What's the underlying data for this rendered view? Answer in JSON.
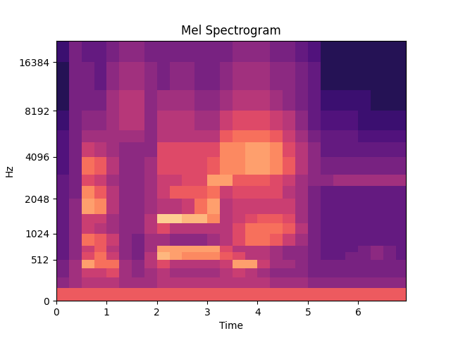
{
  "chart_data": {
    "type": "mel_spectrogram",
    "title": "Mel Spectrogram",
    "x_label": "Time",
    "y_label": "Hz",
    "color": "magma",
    "xlim": [
      0,
      6.95
    ],
    "xticks": [
      0,
      1,
      2,
      3,
      4,
      5,
      6
    ],
    "ylim": [
      0,
      22050
    ],
    "yticks": [
      0,
      512,
      1024,
      2048,
      4096,
      8192,
      16384
    ],
    "color_range": [
      0,
      1
    ],
    "times": [
      0,
      0.25,
      0.5,
      0.75,
      1.0,
      1.25,
      1.5,
      1.75,
      2.0,
      2.25,
      2.5,
      2.75,
      3.0,
      3.25,
      3.5,
      3.75,
      4.0,
      4.25,
      4.5,
      4.75,
      5.0,
      5.25,
      5.5,
      5.75,
      6.0,
      6.25,
      6.5,
      6.75,
      6.95
    ],
    "frequencies": [
      0,
      128,
      256,
      384,
      512,
      640,
      768,
      1024,
      1280,
      1536,
      2048,
      2560,
      3072,
      4096,
      5120,
      6144,
      8192,
      11000,
      16384,
      22050
    ],
    "cells": [
      [
        0.65,
        0.65,
        0.65,
        0.65,
        0.65,
        0.65,
        0.65,
        0.65,
        0.65,
        0.65,
        0.65,
        0.65,
        0.65,
        0.65,
        0.65,
        0.65,
        0.65,
        0.65,
        0.65,
        0.65,
        0.65,
        0.65,
        0.65,
        0.65,
        0.65,
        0.65,
        0.65,
        0.65
      ],
      [
        0.4,
        0.45,
        0.5,
        0.5,
        0.5,
        0.45,
        0.45,
        0.45,
        0.5,
        0.5,
        0.5,
        0.5,
        0.5,
        0.5,
        0.5,
        0.5,
        0.5,
        0.45,
        0.45,
        0.45,
        0.4,
        0.4,
        0.4,
        0.4,
        0.4,
        0.4,
        0.4,
        0.4
      ],
      [
        0.35,
        0.45,
        0.55,
        0.55,
        0.6,
        0.45,
        0.4,
        0.45,
        0.5,
        0.45,
        0.45,
        0.45,
        0.45,
        0.5,
        0.55,
        0.5,
        0.45,
        0.4,
        0.4,
        0.4,
        0.35,
        0.35,
        0.35,
        0.35,
        0.35,
        0.35,
        0.35,
        0.35
      ],
      [
        0.35,
        0.45,
        0.8,
        0.7,
        0.7,
        0.45,
        0.4,
        0.5,
        0.6,
        0.5,
        0.5,
        0.5,
        0.5,
        0.55,
        0.8,
        0.8,
        0.55,
        0.45,
        0.45,
        0.4,
        0.35,
        0.35,
        0.35,
        0.35,
        0.35,
        0.35,
        0.35,
        0.35
      ],
      [
        0.3,
        0.4,
        0.6,
        0.7,
        0.55,
        0.4,
        0.35,
        0.5,
        0.85,
        0.8,
        0.75,
        0.75,
        0.75,
        0.65,
        0.6,
        0.5,
        0.5,
        0.45,
        0.4,
        0.4,
        0.35,
        0.3,
        0.3,
        0.35,
        0.35,
        0.4,
        0.35,
        0.3
      ],
      [
        0.3,
        0.4,
        0.55,
        0.65,
        0.5,
        0.4,
        0.35,
        0.45,
        0.8,
        0.8,
        0.8,
        0.8,
        0.8,
        0.6,
        0.5,
        0.5,
        0.5,
        0.45,
        0.4,
        0.4,
        0.35,
        0.3,
        0.3,
        0.3,
        0.35,
        0.4,
        0.35,
        0.3
      ],
      [
        0.3,
        0.4,
        0.7,
        0.65,
        0.55,
        0.4,
        0.35,
        0.45,
        0.45,
        0.4,
        0.4,
        0.4,
        0.45,
        0.5,
        0.6,
        0.7,
        0.7,
        0.65,
        0.55,
        0.45,
        0.35,
        0.3,
        0.3,
        0.3,
        0.3,
        0.3,
        0.3,
        0.3
      ],
      [
        0.3,
        0.4,
        0.55,
        0.5,
        0.45,
        0.4,
        0.4,
        0.5,
        0.6,
        0.5,
        0.5,
        0.5,
        0.5,
        0.5,
        0.6,
        0.7,
        0.7,
        0.7,
        0.65,
        0.5,
        0.35,
        0.3,
        0.3,
        0.3,
        0.3,
        0.3,
        0.3,
        0.3
      ],
      [
        0.3,
        0.4,
        0.55,
        0.55,
        0.45,
        0.4,
        0.4,
        0.5,
        0.9,
        0.9,
        0.85,
        0.85,
        0.75,
        0.5,
        0.55,
        0.6,
        0.65,
        0.65,
        0.6,
        0.45,
        0.35,
        0.3,
        0.3,
        0.3,
        0.3,
        0.3,
        0.3,
        0.3
      ],
      [
        0.3,
        0.4,
        0.8,
        0.75,
        0.5,
        0.4,
        0.4,
        0.45,
        0.5,
        0.5,
        0.55,
        0.7,
        0.8,
        0.5,
        0.55,
        0.55,
        0.55,
        0.55,
        0.55,
        0.45,
        0.35,
        0.3,
        0.3,
        0.3,
        0.3,
        0.3,
        0.3,
        0.3
      ],
      [
        0.3,
        0.35,
        0.75,
        0.65,
        0.5,
        0.4,
        0.4,
        0.45,
        0.55,
        0.65,
        0.65,
        0.65,
        0.7,
        0.55,
        0.6,
        0.6,
        0.6,
        0.6,
        0.5,
        0.45,
        0.35,
        0.3,
        0.3,
        0.3,
        0.3,
        0.3,
        0.3,
        0.3
      ],
      [
        0.3,
        0.35,
        0.6,
        0.55,
        0.45,
        0.4,
        0.4,
        0.45,
        0.55,
        0.55,
        0.6,
        0.6,
        0.8,
        0.8,
        0.65,
        0.65,
        0.65,
        0.6,
        0.55,
        0.45,
        0.4,
        0.4,
        0.45,
        0.45,
        0.45,
        0.45,
        0.45,
        0.45
      ],
      [
        0.25,
        0.35,
        0.7,
        0.65,
        0.5,
        0.4,
        0.4,
        0.45,
        0.6,
        0.6,
        0.6,
        0.6,
        0.65,
        0.75,
        0.75,
        0.8,
        0.8,
        0.75,
        0.65,
        0.5,
        0.4,
        0.35,
        0.35,
        0.35,
        0.35,
        0.35,
        0.35,
        0.35
      ],
      [
        0.25,
        0.35,
        0.55,
        0.5,
        0.45,
        0.4,
        0.4,
        0.4,
        0.6,
        0.6,
        0.6,
        0.6,
        0.6,
        0.75,
        0.75,
        0.8,
        0.8,
        0.75,
        0.6,
        0.5,
        0.4,
        0.3,
        0.3,
        0.3,
        0.3,
        0.3,
        0.3,
        0.3
      ],
      [
        0.25,
        0.35,
        0.45,
        0.45,
        0.45,
        0.45,
        0.45,
        0.4,
        0.5,
        0.5,
        0.5,
        0.5,
        0.5,
        0.65,
        0.7,
        0.7,
        0.7,
        0.65,
        0.55,
        0.45,
        0.35,
        0.3,
        0.3,
        0.3,
        0.25,
        0.25,
        0.25,
        0.25
      ],
      [
        0.2,
        0.35,
        0.4,
        0.4,
        0.45,
        0.5,
        0.5,
        0.4,
        0.5,
        0.5,
        0.5,
        0.45,
        0.45,
        0.55,
        0.6,
        0.6,
        0.6,
        0.55,
        0.5,
        0.4,
        0.3,
        0.25,
        0.25,
        0.25,
        0.2,
        0.2,
        0.2,
        0.2
      ],
      [
        0.15,
        0.35,
        0.35,
        0.35,
        0.45,
        0.5,
        0.5,
        0.4,
        0.45,
        0.45,
        0.45,
        0.4,
        0.4,
        0.45,
        0.5,
        0.5,
        0.5,
        0.45,
        0.4,
        0.35,
        0.3,
        0.2,
        0.2,
        0.2,
        0.2,
        0.15,
        0.15,
        0.15
      ],
      [
        0.15,
        0.35,
        0.35,
        0.3,
        0.4,
        0.45,
        0.45,
        0.4,
        0.35,
        0.4,
        0.4,
        0.35,
        0.35,
        0.4,
        0.45,
        0.45,
        0.45,
        0.4,
        0.4,
        0.35,
        0.3,
        0.15,
        0.15,
        0.15,
        0.15,
        0.15,
        0.15,
        0.15
      ],
      [
        0.2,
        0.35,
        0.3,
        0.3,
        0.35,
        0.4,
        0.4,
        0.35,
        0.35,
        0.35,
        0.35,
        0.35,
        0.35,
        0.35,
        0.4,
        0.4,
        0.4,
        0.35,
        0.35,
        0.3,
        0.25,
        0.15,
        0.15,
        0.15,
        0.15,
        0.15,
        0.15,
        0.15
      ]
    ]
  }
}
